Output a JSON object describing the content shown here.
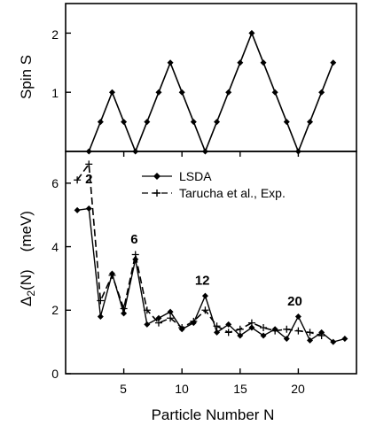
{
  "chart_data": [
    {
      "type": "line",
      "ylabel": "Spin S",
      "xlim": [
        0,
        25
      ],
      "ylim": [
        0,
        2.5
      ],
      "yticks": [
        "1",
        "2"
      ],
      "grid": false,
      "series": [
        {
          "marker": "diamond",
          "style": "solid",
          "x": [
            2,
            3,
            4,
            5,
            6,
            7,
            8,
            9,
            10,
            11,
            12,
            13,
            14,
            15,
            16,
            17,
            18,
            19,
            20,
            21,
            22,
            23
          ],
          "y": [
            0,
            0.5,
            1,
            0.5,
            0,
            0.5,
            1,
            1.5,
            1,
            0.5,
            0,
            0.5,
            1,
            1.5,
            2,
            1.5,
            1,
            0.5,
            0,
            0.5,
            1,
            1.5
          ]
        }
      ]
    },
    {
      "type": "line",
      "xlabel": "Particle Number N",
      "ylabel_main": "Δ",
      "ylabel_sub": "2",
      "ylabel_rest": "(N)",
      "ylabel_unit": "(meV)",
      "xlim": [
        0,
        25
      ],
      "ylim": [
        0,
        7
      ],
      "xticks": [
        "5",
        "10",
        "15",
        "20"
      ],
      "yticks": [
        "0",
        "2",
        "4",
        "6"
      ],
      "grid": false,
      "legend_position": "top-right",
      "series": [
        {
          "name": "LSDA",
          "marker": "diamond",
          "style": "solid",
          "x": [
            1,
            2,
            3,
            4,
            5,
            6,
            7,
            8,
            9,
            10,
            11,
            12,
            13,
            14,
            15,
            16,
            17,
            18,
            19,
            20,
            21,
            22,
            23,
            24
          ],
          "y": [
            5.15,
            5.2,
            1.8,
            3.15,
            1.9,
            3.6,
            1.55,
            1.75,
            1.95,
            1.4,
            1.6,
            2.45,
            1.3,
            1.55,
            1.2,
            1.45,
            1.2,
            1.4,
            1.1,
            1.8,
            1.05,
            1.3,
            1.0,
            1.1
          ]
        },
        {
          "name": "Tarucha et al., Exp.",
          "marker": "plus",
          "style": "dashed",
          "x": [
            1,
            2,
            3,
            4,
            5,
            6,
            7,
            8,
            9,
            10,
            11,
            12,
            13,
            14,
            15,
            16,
            17,
            18,
            19,
            20,
            21,
            22
          ],
          "y": [
            6.1,
            6.6,
            2.3,
            3.1,
            2.05,
            3.75,
            2.0,
            1.6,
            1.75,
            1.45,
            1.65,
            2.0,
            1.5,
            1.3,
            1.4,
            1.6,
            1.45,
            1.35,
            1.4,
            1.35,
            1.3,
            1.2
          ]
        }
      ],
      "annotations": [
        {
          "text": "2",
          "x": 2.0,
          "y": 6.0
        },
        {
          "text": "6",
          "x": 5.9,
          "y": 4.1
        },
        {
          "text": "12",
          "x": 11.75,
          "y": 2.8
        },
        {
          "text": "20",
          "x": 19.7,
          "y": 2.15
        }
      ]
    }
  ]
}
